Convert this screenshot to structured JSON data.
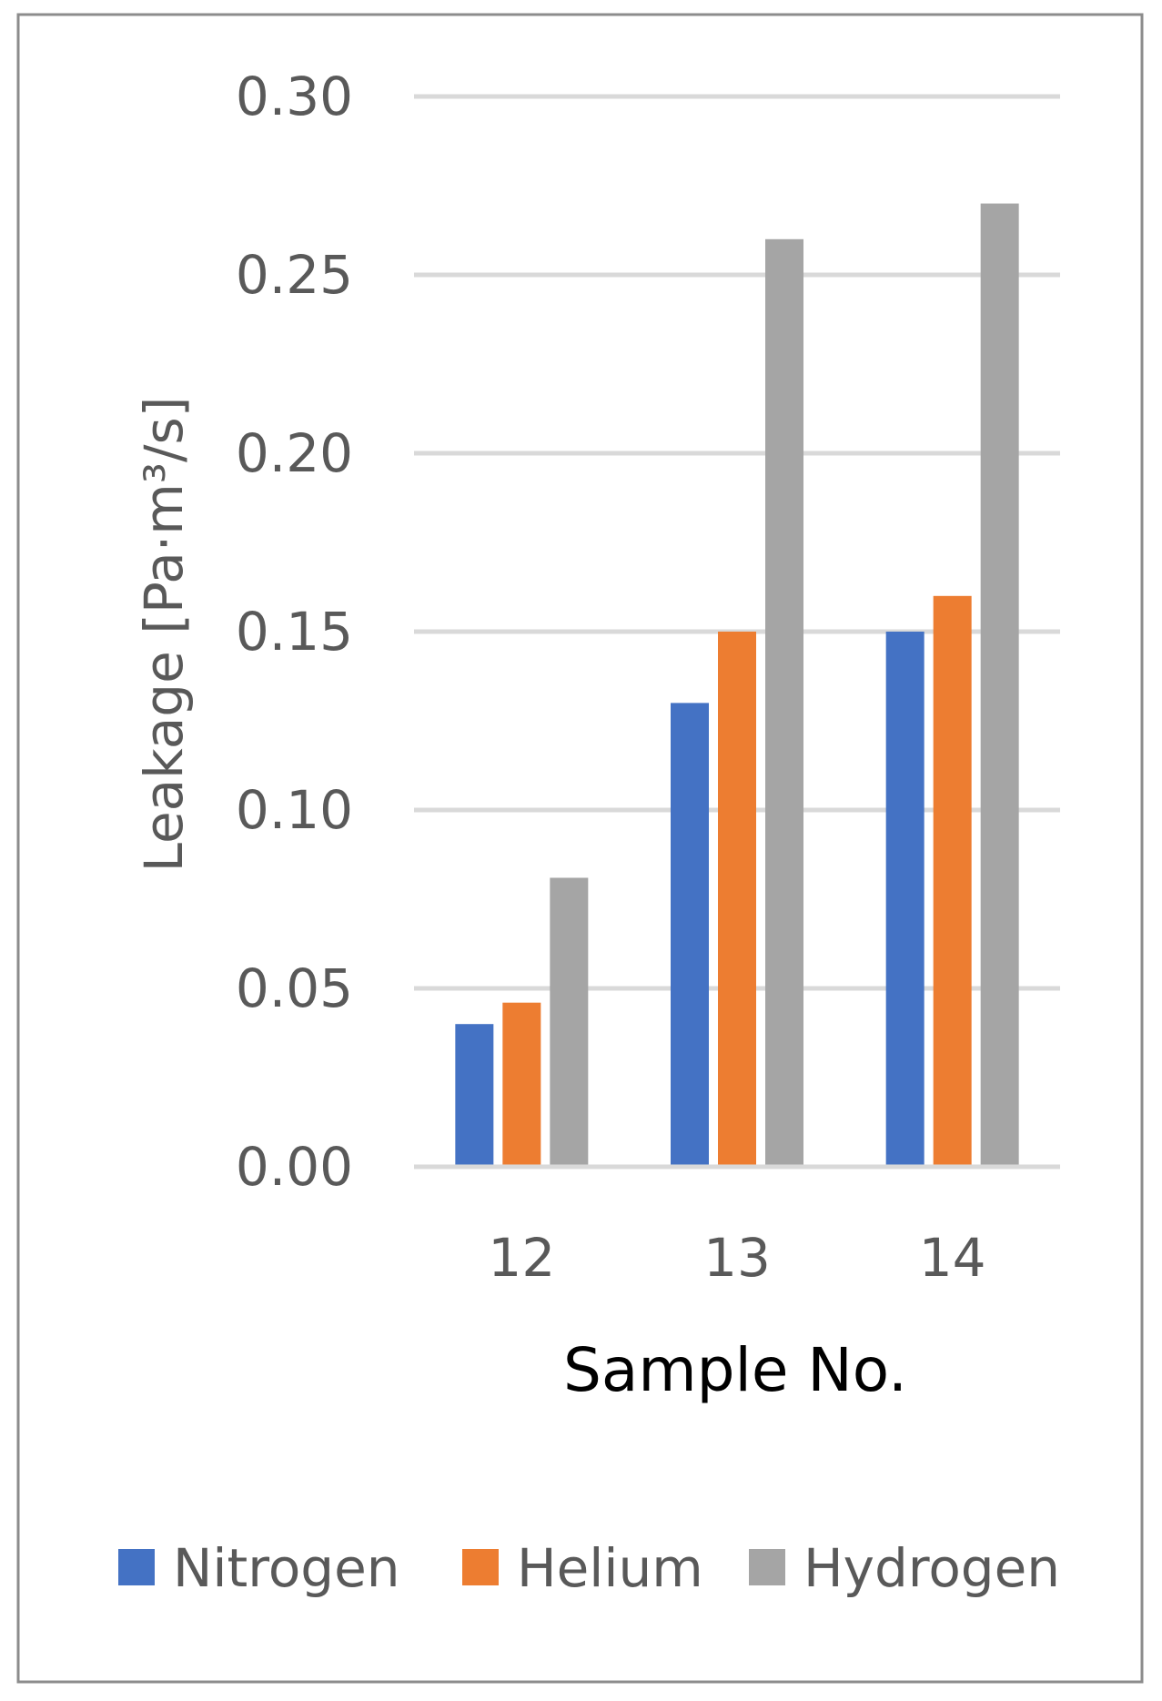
{
  "chart_data": {
    "type": "bar",
    "categories": [
      "12",
      "13",
      "14"
    ],
    "series": [
      {
        "name": "Nitrogen",
        "values": [
          0.04,
          0.13,
          0.15
        ],
        "color": "#4472C4"
      },
      {
        "name": "Helium",
        "values": [
          0.046,
          0.15,
          0.16
        ],
        "color": "#ED7D31"
      },
      {
        "name": "Hydrogen",
        "values": [
          0.081,
          0.26,
          0.27
        ],
        "color": "#A5A5A5"
      }
    ],
    "xlabel": "Sample No.",
    "ylabel": "Leakage [Pa·m³/s]",
    "ylim": [
      0,
      0.3
    ],
    "yticks": [
      "0.00",
      "0.05",
      "0.10",
      "0.15",
      "0.20",
      "0.25",
      "0.30"
    ],
    "grid": true,
    "legend_position": "bottom"
  }
}
